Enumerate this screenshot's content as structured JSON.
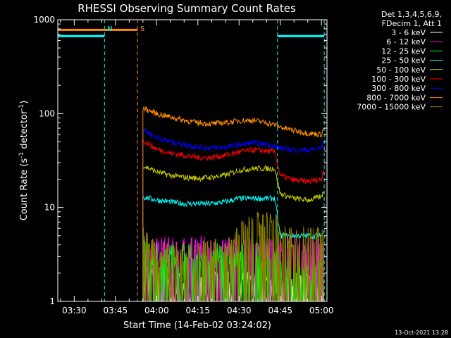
{
  "chart_data": {
    "type": "line",
    "title": "RHESSI Observing Summary Count Rates",
    "xlabel": "Start Time (14-Feb-02 03:24:02)",
    "ylabel_main": "Count Rate (s",
    "ylabel_sup1": "-1",
    "ylabel_mid": " detector",
    "ylabel_sup2": "-1",
    "ylabel_end": ")",
    "y_scale": "log",
    "ylim": [
      1,
      1000
    ],
    "xlim": [
      "03:24",
      "05:02"
    ],
    "x_ticks": [
      "03:30",
      "03:45",
      "04:00",
      "04:15",
      "04:30",
      "04:45",
      "05:00"
    ],
    "y_ticks": [
      "1",
      "10",
      "100",
      "1000"
    ],
    "legend_header": [
      "Det 1,3,4,5,6,9,",
      "FDecim 1, Att 1"
    ],
    "legend_position": "right",
    "timestamp": "13-Oct-2021 13:28",
    "markers": [
      {
        "label": "N",
        "time": "03:41",
        "color": "#00ffff"
      },
      {
        "label": "S",
        "time": "03:53",
        "color": "#ff8c00"
      },
      {
        "time": "04:44",
        "color": "#00ffff"
      },
      {
        "time": "05:01",
        "color": "#00ffff"
      }
    ],
    "bars": [
      {
        "from": "03:24",
        "to": "03:41",
        "value": 780,
        "color": "#ff8c00"
      },
      {
        "from": "03:24",
        "to": "03:41",
        "value": 670,
        "color": "#00ffff"
      },
      {
        "from": "03:41",
        "to": "03:53",
        "value": 780,
        "color": "#ff8c00"
      },
      {
        "from": "04:44",
        "to": "05:01",
        "value": 670,
        "color": "#00ffff"
      }
    ],
    "times": [
      "03:55",
      "04:00",
      "04:05",
      "04:10",
      "04:15",
      "04:20",
      "04:25",
      "04:30",
      "04:35",
      "04:40",
      "04:43",
      "04:45",
      "04:50",
      "04:55",
      "05:00",
      "05:01"
    ],
    "series": [
      {
        "name": "3 - 6 keV",
        "color": "#ffffff",
        "noisy": true,
        "values": [
          2,
          1.6,
          1.5,
          1.5,
          1.5,
          1.5,
          1.5,
          1.5,
          1.5,
          1.5,
          1.5,
          1.5,
          1.5,
          1.5,
          1.5,
          1.5
        ]
      },
      {
        "name": "6 - 12 keV",
        "color": "#ff00ff",
        "noisy": true,
        "values": [
          4,
          3.6,
          3.5,
          3.4,
          3.6,
          3.5,
          3.5,
          3.5,
          3.5,
          3.6,
          3.6,
          3.5,
          3.5,
          3.6,
          3.5,
          3.6
        ]
      },
      {
        "name": "12 - 25 keV",
        "color": "#00ff00",
        "noisy": true,
        "values": [
          3.5,
          3,
          3,
          3,
          3,
          3,
          3,
          3,
          3,
          3.2,
          3,
          2,
          2,
          2,
          2,
          2.5
        ]
      },
      {
        "name": "25 - 50 keV",
        "color": "#00ffff",
        "values": [
          13,
          12,
          11.5,
          11,
          11,
          11,
          11.5,
          12.5,
          12.5,
          12.5,
          12.5,
          5,
          5,
          5,
          5,
          5.5
        ]
      },
      {
        "name": "50 - 100 keV",
        "color": "#cccc00",
        "values": [
          28,
          24,
          22,
          21,
          20.5,
          21,
          22,
          25,
          26,
          26,
          26,
          14,
          12.5,
          12,
          13,
          16
        ]
      },
      {
        "name": "100 - 300 keV",
        "color": "#ff0000",
        "values": [
          52,
          42,
          38,
          36,
          34,
          34,
          36,
          39,
          41,
          40,
          39,
          22,
          19.5,
          19,
          20,
          27
        ]
      },
      {
        "name": "300 - 800 keV",
        "color": "#0000ff",
        "values": [
          68,
          56,
          50,
          47,
          44,
          43,
          44,
          47,
          49,
          47,
          45,
          43,
          41,
          41,
          43,
          52
        ]
      },
      {
        "name": "800 - 7000 keV",
        "color": "#ff8c00",
        "values": [
          115,
          100,
          92,
          85,
          80,
          78,
          80,
          84,
          85,
          80,
          76,
          72,
          66,
          62,
          60,
          73
        ]
      },
      {
        "name": "7000 - 15000 keV",
        "color": "#8b8000",
        "noisy": true,
        "values": [
          4.5,
          3.2,
          3.2,
          3.2,
          3.2,
          3.2,
          3.5,
          5,
          6.5,
          6.5,
          6.5,
          5,
          4.5,
          4.5,
          4.5,
          6
        ]
      }
    ]
  }
}
